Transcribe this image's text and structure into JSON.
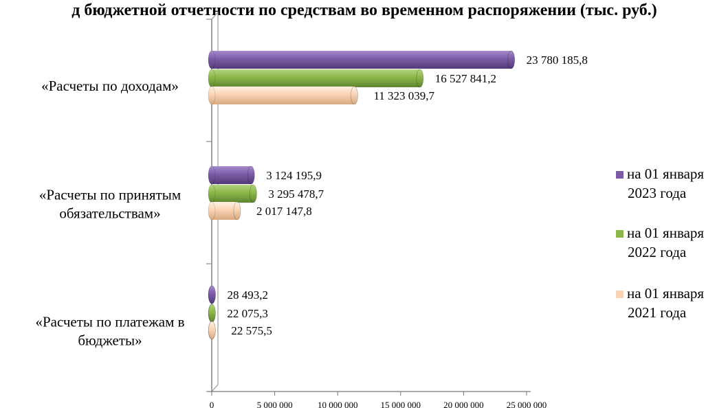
{
  "chart_data": {
    "type": "bar",
    "orientation": "horizontal",
    "title": "д бюджетной отчетности по средствам во временном распоряжении (тыс. руб.)",
    "categories": [
      [
        "«Расчеты по доходам»"
      ],
      [
        "«Расчеты по принятым",
        "обязательствам»"
      ],
      [
        "«Расчеты по платежам в",
        "бюджеты»"
      ]
    ],
    "series": [
      {
        "name": [
          "на 01 января",
          "2023 года"
        ],
        "color": "#7B5BA6",
        "values": [
          23780185.8,
          3124195.9,
          28493.2
        ],
        "labels": [
          "23 780 185,8",
          "3 124 195,9",
          "28 493,2"
        ]
      },
      {
        "name": [
          "на 01 января",
          "2022 года"
        ],
        "color": "#8AB64A",
        "values": [
          16527841.2,
          3295478.7,
          22075.3
        ],
        "labels": [
          "16 527 841,2",
          "3 295 478,7",
          "22 075,3"
        ]
      },
      {
        "name": [
          "на 01 января",
          "2021 года"
        ],
        "color": "#F9D3B4",
        "values": [
          11323039.7,
          2017147.8,
          22575.5
        ],
        "labels": [
          "11 323 039,7",
          "2 017 147,8",
          "22 575,5"
        ]
      }
    ],
    "xlim": [
      0,
      25000000
    ],
    "xticks": [
      0,
      5000000,
      10000000,
      15000000,
      20000000,
      25000000
    ],
    "xtick_labels": [
      "0",
      "5 000 000",
      "10 000 000",
      "15 000 000",
      "20 000 000",
      "25 000 000"
    ],
    "legend_position": "right",
    "grid": false
  }
}
